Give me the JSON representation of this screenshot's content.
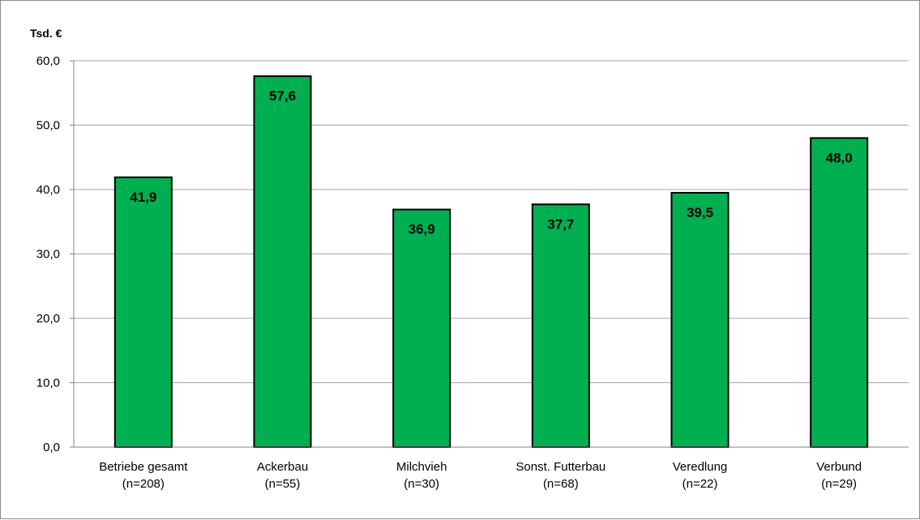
{
  "chart_data": {
    "type": "bar",
    "title": "",
    "ylabel": "Tsd. €",
    "xlabel": "",
    "ylim": [
      0,
      60
    ],
    "ytick_step": 10,
    "ytick_labels": [
      "0,0",
      "10,0",
      "20,0",
      "30,0",
      "40,0",
      "50,0",
      "60,0"
    ],
    "grid": true,
    "legend": "none",
    "categories": [
      [
        "Betriebe gesamt",
        "(n=208)"
      ],
      [
        "Ackerbau",
        "(n=55)"
      ],
      [
        "Milchvieh",
        "(n=30)"
      ],
      [
        "Sonst. Futterbau",
        "(n=68)"
      ],
      [
        "Veredlung",
        "(n=22)"
      ],
      [
        "Verbund",
        "(n=29)"
      ]
    ],
    "values": [
      41.9,
      57.6,
      36.9,
      37.7,
      39.5,
      48.0
    ],
    "data_labels": [
      "41,9",
      "57,6",
      "36,9",
      "37,7",
      "39,5",
      "48,0"
    ],
    "colors": {
      "bar_fill": "#00b050",
      "bar_stroke": "#000000",
      "grid": "#a6a6a6",
      "axis": "#808080"
    }
  }
}
